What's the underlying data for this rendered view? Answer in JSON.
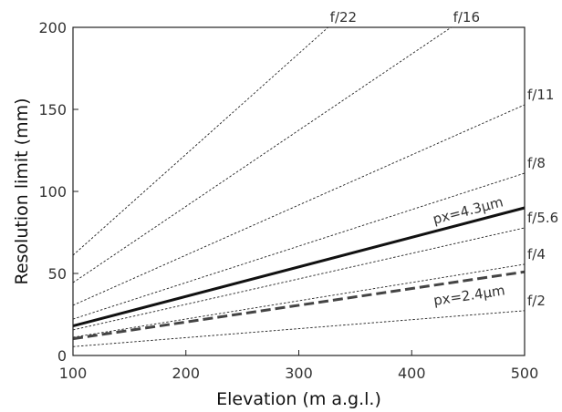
{
  "chart_data": {
    "type": "line",
    "title": "",
    "xlabel": "Elevation (m a.g.l.)",
    "ylabel": "Resolution limit (mm)",
    "xlim": [
      100,
      500
    ],
    "ylim": [
      0,
      200
    ],
    "xticks": [
      100,
      200,
      300,
      400,
      500
    ],
    "yticks": [
      0,
      50,
      100,
      150,
      200
    ],
    "grid": false,
    "series": [
      {
        "name": "f/2",
        "style": "dotted",
        "color": "#222222",
        "x": [
          100,
          500
        ],
        "y": [
          5.4,
          27.3
        ]
      },
      {
        "name": "f/4",
        "style": "dotted",
        "color": "#222222",
        "x": [
          100,
          500
        ],
        "y": [
          11.1,
          55.6
        ]
      },
      {
        "name": "f/5.6",
        "style": "dotted",
        "color": "#222222",
        "x": [
          100,
          500
        ],
        "y": [
          15.6,
          77.8
        ]
      },
      {
        "name": "f/8",
        "style": "dotted",
        "color": "#222222",
        "x": [
          100,
          500
        ],
        "y": [
          22.2,
          111.1
        ]
      },
      {
        "name": "f/11",
        "style": "dotted",
        "color": "#222222",
        "x": [
          100,
          500
        ],
        "y": [
          30.6,
          152.8
        ]
      },
      {
        "name": "f/16",
        "style": "dotted",
        "color": "#222222",
        "x": [
          100,
          435
        ],
        "y": [
          44.4,
          200
        ]
      },
      {
        "name": "f/22",
        "style": "dotted",
        "color": "#222222",
        "x": [
          100,
          326
        ],
        "y": [
          61.1,
          200
        ]
      },
      {
        "name": "px=4.3μm",
        "style": "solid",
        "color": "#111111",
        "x": [
          100,
          500
        ],
        "y": [
          18.0,
          90.0
        ]
      },
      {
        "name": "px=2.4μm",
        "style": "dashed",
        "color": "#444444",
        "x": [
          100,
          500
        ],
        "y": [
          10.2,
          51.0
        ]
      }
    ]
  }
}
